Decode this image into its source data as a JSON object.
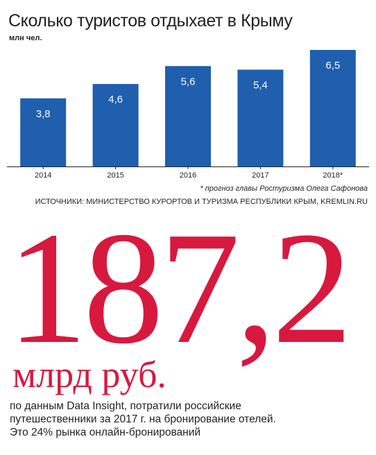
{
  "header": {
    "title": "Сколько туристов отдыхает в Крыму",
    "unit": "млн чел."
  },
  "chart_data": {
    "type": "bar",
    "categories": [
      "2014",
      "2015",
      "2016",
      "2017",
      "2018*"
    ],
    "values": [
      3.8,
      4.6,
      5.6,
      5.4,
      6.5
    ],
    "value_labels": [
      "3,8",
      "4,6",
      "5,6",
      "5,4",
      "6,5"
    ],
    "title": "Сколько туристов отдыхает в Крыму",
    "ylabel": "млн чел.",
    "xlabel": "",
    "ylim": [
      0,
      6.5
    ],
    "grid": false,
    "legend": "none",
    "bar_color": "#1f5fae"
  },
  "notes": {
    "footnote": "* прогноз главы Ростуризма Олега Сафонова",
    "sources": "ИСТОЧНИКИ: МИНИСТЕРСТВО КУРОРТОВ И ТУРИЗМА РЕСПУБЛИКИ КРЫМ, KREMLIN.RU"
  },
  "highlight": {
    "number": "187,2",
    "unit": "млрд руб.",
    "caption_lines": [
      "по данным Data Insight, потратили российские",
      "путешественники за 2017 г. на бронирование отелей.",
      "Это 24% рынка онлайн-бронирований"
    ],
    "accent_color": "#d7193f"
  }
}
